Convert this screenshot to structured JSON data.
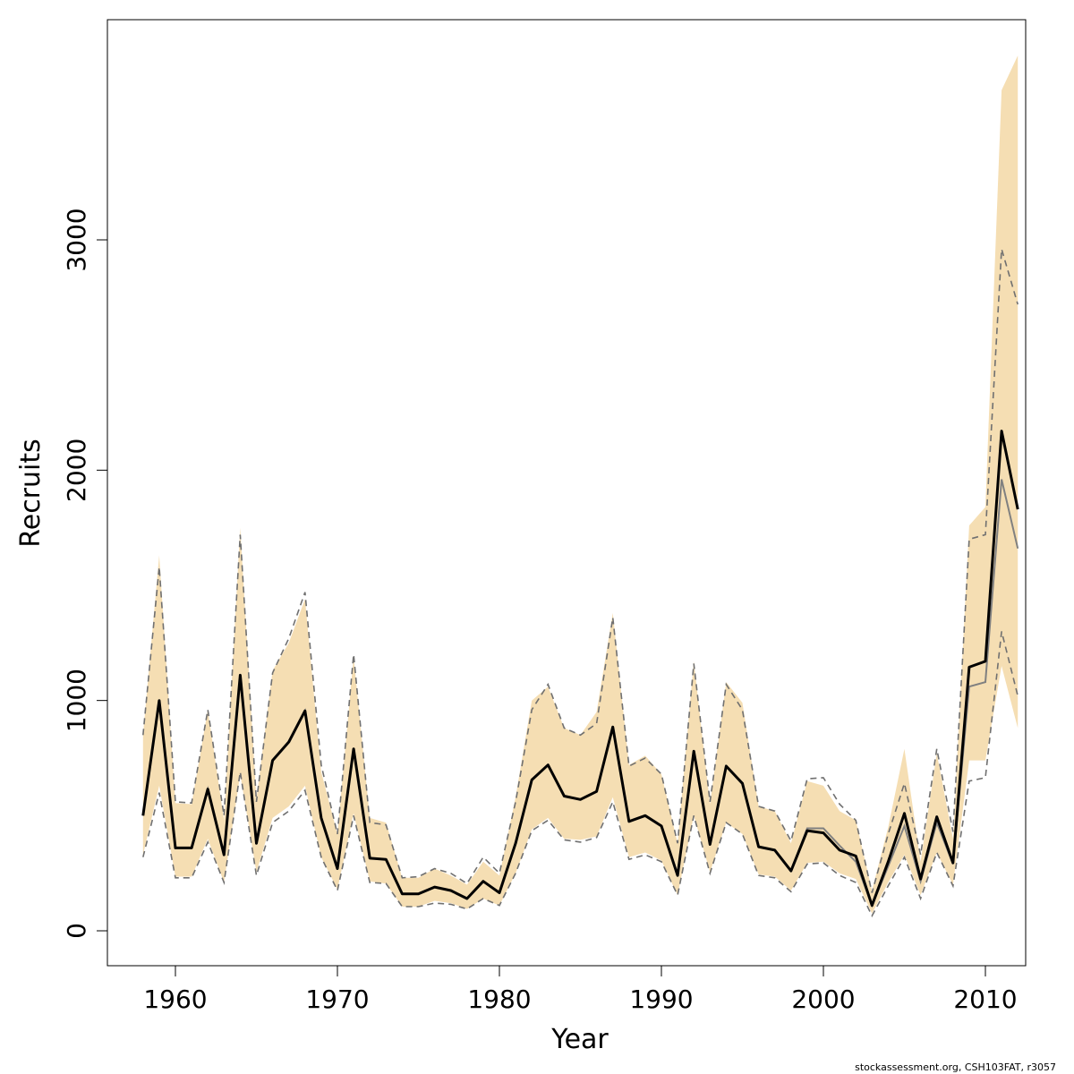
{
  "chart_data": {
    "type": "line",
    "title": "",
    "xlabel": "Year",
    "ylabel": "Recruits",
    "xlim": [
      1956,
      2014.5
    ],
    "ylim": [
      -150,
      3950
    ],
    "xticks": [
      1960,
      1970,
      1980,
      1990,
      2000,
      2010
    ],
    "yticks": [
      0,
      1000,
      2000,
      3000
    ],
    "grid": false,
    "legend": "none",
    "colors": {
      "band": "#f5deb3",
      "main_line": "#000000",
      "secondary_line": "#808080",
      "dashed_bounds": "#707070"
    },
    "x": [
      1958,
      1959,
      1960,
      1961,
      1962,
      1963,
      1964,
      1965,
      1966,
      1967,
      1968,
      1969,
      1970,
      1971,
      1972,
      1973,
      1974,
      1975,
      1976,
      1977,
      1978,
      1979,
      1980,
      1981,
      1982,
      1983,
      1984,
      1985,
      1986,
      1987,
      1988,
      1989,
      1990,
      1991,
      1992,
      1993,
      1994,
      1995,
      1996,
      1997,
      1998,
      1999,
      2000,
      2001,
      2002,
      2003,
      2004,
      2005,
      2006,
      2007,
      2008,
      2009,
      2010,
      2011,
      2012
    ],
    "series": [
      {
        "role": "estimate",
        "values": [
          500,
          1000,
          360,
          360,
          615,
          330,
          1110,
          380,
          740,
          820,
          955,
          490,
          270,
          790,
          315,
          310,
          160,
          160,
          190,
          175,
          140,
          215,
          165,
          380,
          655,
          720,
          585,
          570,
          605,
          885,
          475,
          500,
          455,
          240,
          780,
          375,
          715,
          640,
          365,
          350,
          260,
          435,
          425,
          350,
          325,
          110,
          300,
          510,
          225,
          495,
          295,
          1145,
          1170,
          2170,
          1830
        ]
      },
      {
        "role": "secondary",
        "values": [
          500,
          1000,
          360,
          360,
          615,
          330,
          1110,
          380,
          740,
          820,
          955,
          490,
          270,
          790,
          315,
          310,
          160,
          160,
          190,
          175,
          140,
          215,
          165,
          380,
          655,
          720,
          585,
          570,
          605,
          885,
          475,
          500,
          455,
          240,
          780,
          375,
          715,
          640,
          365,
          350,
          260,
          445,
          445,
          370,
          300,
          110,
          280,
          455,
          215,
          470,
          290,
          1060,
          1080,
          1960,
          1660
        ]
      },
      {
        "role": "upper-bound",
        "values": [
          850,
          1580,
          560,
          555,
          960,
          500,
          1720,
          560,
          1120,
          1270,
          1470,
          720,
          420,
          1200,
          470,
          460,
          230,
          235,
          270,
          250,
          205,
          320,
          250,
          560,
          960,
          1070,
          880,
          850,
          900,
          1360,
          715,
          750,
          680,
          380,
          1160,
          560,
          1070,
          960,
          540,
          520,
          390,
          660,
          665,
          550,
          480,
          165,
          420,
          640,
          330,
          790,
          430,
          1700,
          1720,
          2960,
          2720
        ]
      },
      {
        "role": "lower-bound",
        "values": [
          320,
          600,
          230,
          230,
          385,
          210,
          690,
          240,
          470,
          520,
          610,
          320,
          175,
          500,
          210,
          205,
          105,
          105,
          120,
          115,
          95,
          140,
          110,
          250,
          435,
          480,
          395,
          385,
          405,
          560,
          310,
          330,
          300,
          155,
          500,
          250,
          470,
          420,
          240,
          230,
          170,
          290,
          295,
          240,
          210,
          65,
          195,
          320,
          140,
          340,
          195,
          650,
          665,
          1300,
          1020
        ]
      },
      {
        "role": "band-upper",
        "values": [
          850,
          1630,
          555,
          550,
          960,
          480,
          1750,
          570,
          1130,
          1250,
          1440,
          690,
          420,
          1190,
          490,
          470,
          230,
          230,
          270,
          240,
          200,
          300,
          240,
          580,
          1000,
          1060,
          880,
          850,
          950,
          1380,
          720,
          760,
          680,
          380,
          1170,
          550,
          1080,
          990,
          540,
          520,
          380,
          650,
          630,
          520,
          480,
          175,
          450,
          790,
          300,
          770,
          400,
          1760,
          1840,
          3650,
          3800
        ]
      },
      {
        "role": "band-lower",
        "values": [
          330,
          630,
          235,
          235,
          400,
          210,
          680,
          255,
          490,
          540,
          630,
          320,
          180,
          510,
          215,
          205,
          105,
          105,
          130,
          120,
          95,
          140,
          110,
          250,
          440,
          490,
          400,
          395,
          410,
          580,
          320,
          340,
          305,
          155,
          500,
          255,
          470,
          420,
          245,
          235,
          175,
          295,
          300,
          250,
          225,
          75,
          210,
          330,
          155,
          340,
          200,
          740,
          740,
          1150,
          880
        ]
      }
    ]
  },
  "footer": {
    "credit": "stockassessment.org, CSH103FAT, r3057"
  }
}
